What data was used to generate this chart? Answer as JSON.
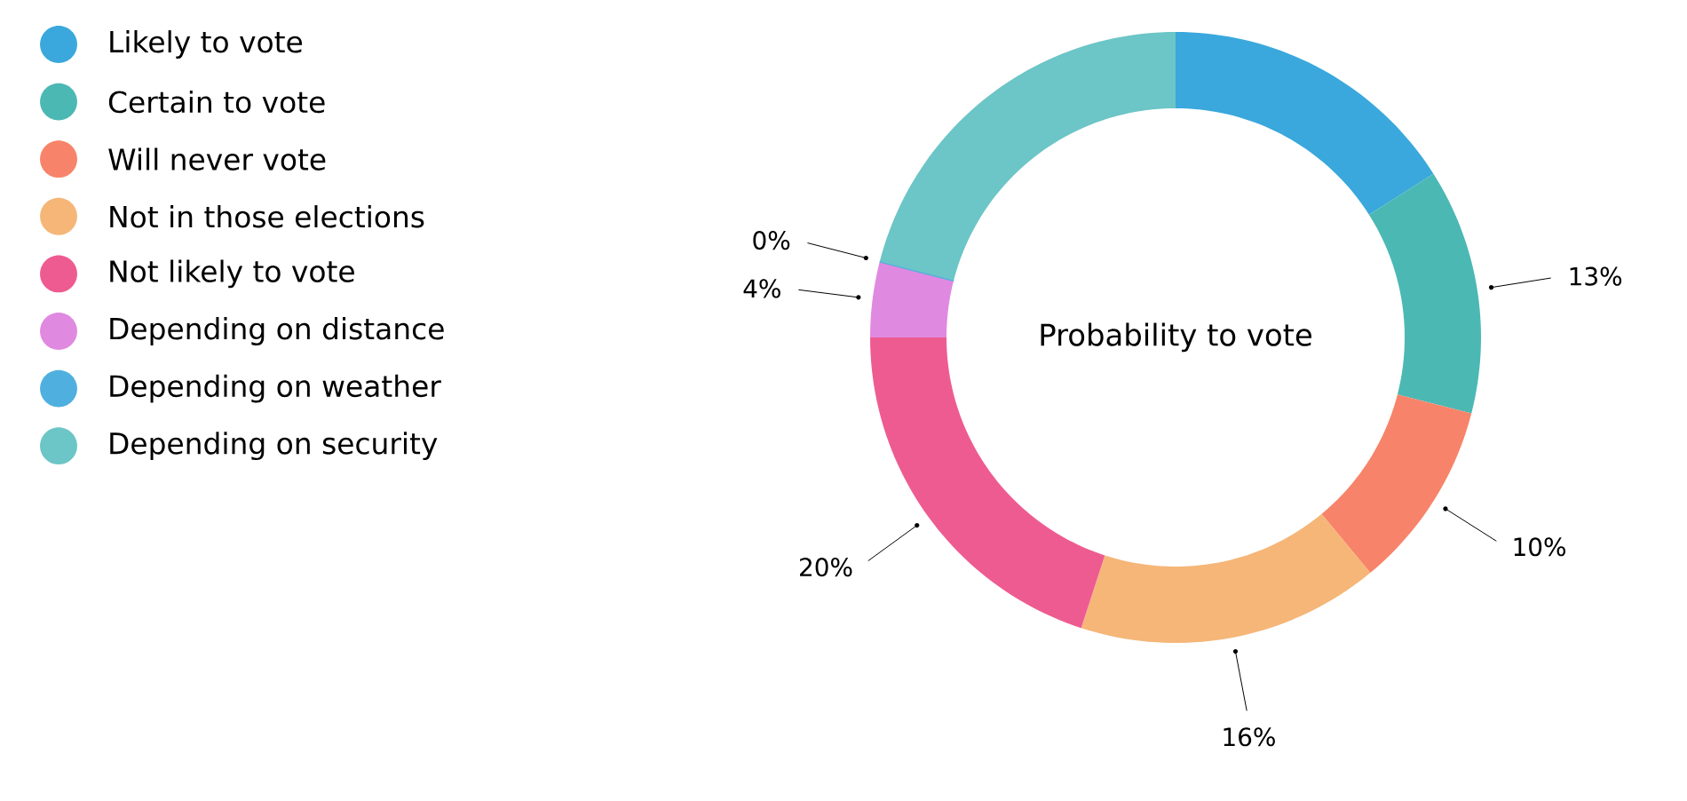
{
  "chart_data": {
    "type": "donut",
    "title": "Probability to vote",
    "categories": [
      "Likely to vote",
      "Certain to vote",
      "Will never vote",
      "Not in those elections",
      "Not likely to vote",
      "Depending on distance",
      "Depending on weather",
      "Depending on security"
    ],
    "values": [
      16,
      13,
      10,
      16,
      20,
      4,
      0,
      21
    ],
    "colors": [
      "#3aa8dc",
      "#4bb8b4",
      "#f7846a",
      "#f5b678",
      "#ee5b91",
      "#e089e0",
      "#4fb0e0",
      "#6cc5c6"
    ],
    "value_labels": [
      null,
      "13%",
      "10%",
      "16%",
      "20%",
      "4%",
      "0%",
      null
    ],
    "legend": "top left"
  }
}
